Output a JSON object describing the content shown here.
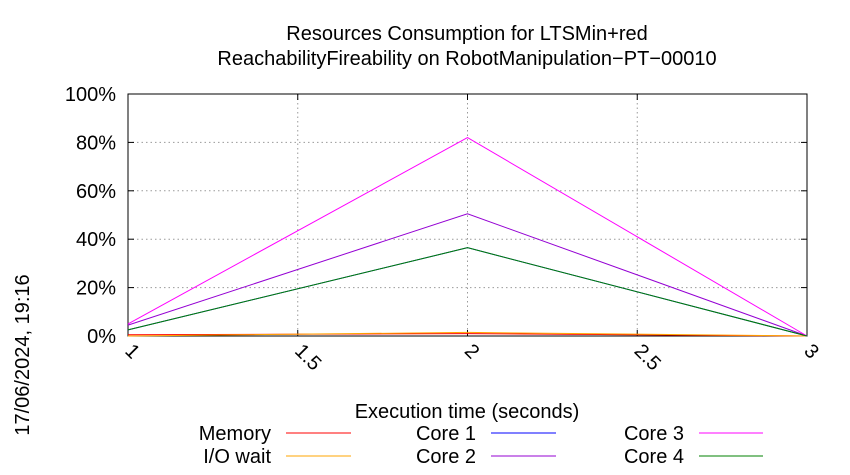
{
  "chart_data": {
    "type": "line",
    "title": "Resources Consumption for LTSMin+red",
    "subtitle": "ReachabilityFireability on RobotManipulation−PT−00010",
    "xlabel": "Execution time (seconds)",
    "ylabel": "",
    "xlim": [
      1,
      3
    ],
    "ylim": [
      0,
      100
    ],
    "x_ticks": [
      1,
      1.5,
      2,
      2.5,
      3
    ],
    "x_tick_labels": [
      "1",
      "1.5",
      "2",
      "2.5",
      "3"
    ],
    "y_ticks": [
      0,
      20,
      40,
      60,
      80,
      100
    ],
    "y_tick_labels": [
      "0%",
      "20%",
      "40%",
      "60%",
      "80%",
      "100%"
    ],
    "grid": true,
    "legend_position": "bottom",
    "timestamp": "17/06/2024, 19:16",
    "x": [
      1,
      2,
      3
    ],
    "series": [
      {
        "name": "Memory",
        "color": "#ff0000",
        "values": [
          0.5,
          1.0,
          0.0
        ]
      },
      {
        "name": "I/O wait",
        "color": "#ffa500",
        "values": [
          0.0,
          1.5,
          0.0
        ]
      },
      {
        "name": "Core 1",
        "color": "#0000ff",
        "values": [
          2.5,
          36.5,
          0.0
        ]
      },
      {
        "name": "Core 2",
        "color": "#9400d3",
        "values": [
          4.5,
          50.5,
          0.0
        ]
      },
      {
        "name": "Core 3",
        "color": "#ff00ff",
        "values": [
          5.0,
          82.0,
          0.0
        ]
      },
      {
        "name": "Core 4",
        "color": "#008000",
        "values": [
          2.5,
          36.5,
          0.0
        ]
      }
    ]
  }
}
